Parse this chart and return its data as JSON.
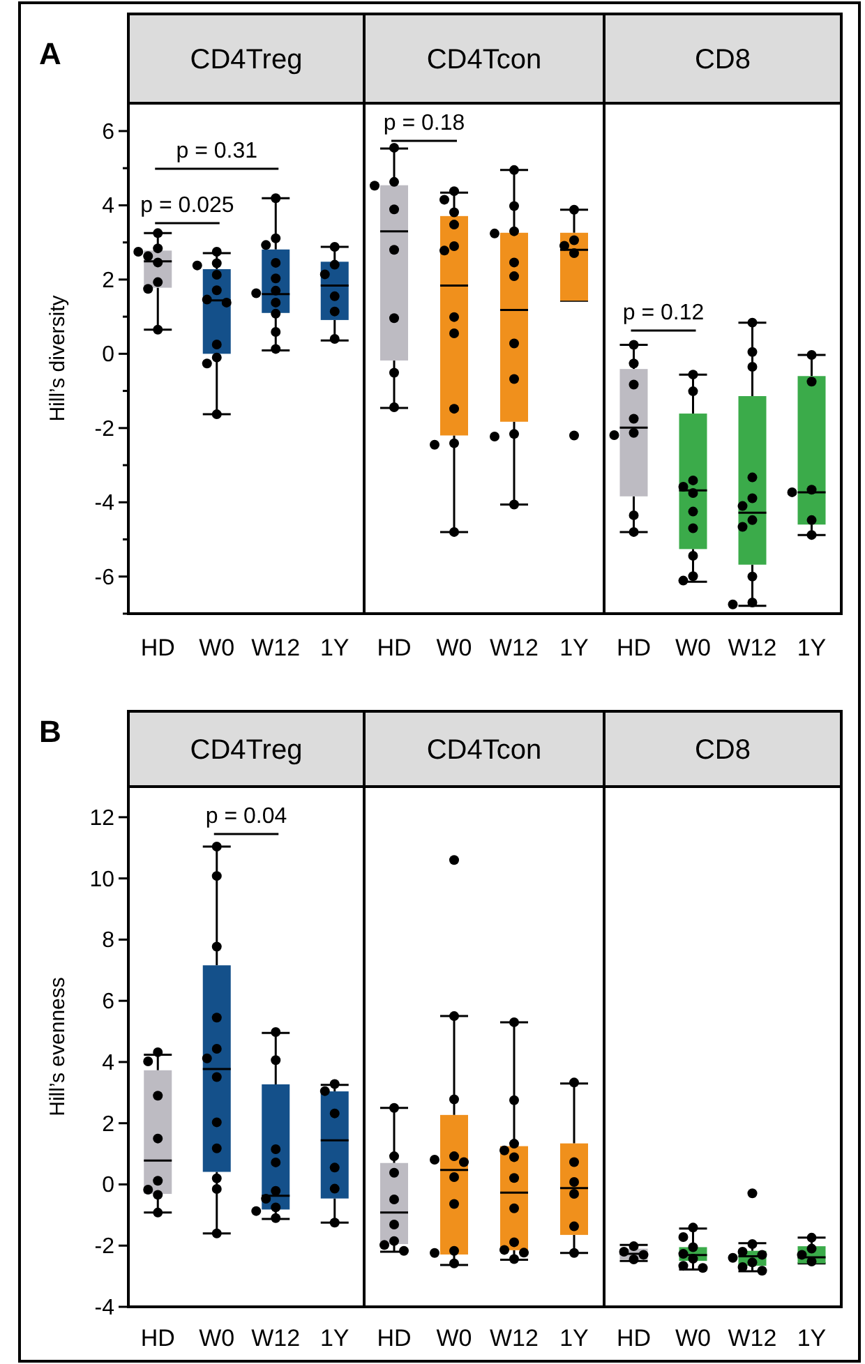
{
  "chart_data": [
    {
      "type": "box",
      "title": "CD4Treg",
      "ylabel": "Hill’s diversity",
      "categories": [
        "HD",
        "W0",
        "W12",
        "1Y"
      ],
      "colors": [
        "#bdbbc2",
        "#14508a",
        "#14508a",
        "#14508a"
      ],
      "boxes": [
        {
          "low": 0.65,
          "q1": 1.78,
          "median": 2.49,
          "q3": 2.78,
          "high": 3.25
        },
        {
          "low": -1.63,
          "q1": 0,
          "median": 1.44,
          "q3": 2.28,
          "high": 2.71
        },
        {
          "low": 0.09,
          "q1": 1.1,
          "median": 1.61,
          "q3": 2.81,
          "high": 4.19
        },
        {
          "low": 0.36,
          "q1": 0.91,
          "median": 1.84,
          "q3": 2.48,
          "high": 2.88
        }
      ],
      "series": [
        {
          "type": "scatter",
          "color": "#000000",
          "x": [
            "HD",
            "HD",
            "HD",
            "HD",
            "HD",
            "HD",
            "HD",
            "HD",
            "W0",
            "W0",
            "W0",
            "W0",
            "W0",
            "W0",
            "W0",
            "W0",
            "W0",
            "W0",
            "W0",
            "W12",
            "W12",
            "W12",
            "W12",
            "W12",
            "W12",
            "W12",
            "W12",
            "W12",
            "W12",
            "W12",
            "1Y",
            "1Y",
            "1Y",
            "1Y",
            "1Y",
            "1Y"
          ],
          "values": [
            3.25,
            2.84,
            2.75,
            2.63,
            2.46,
            1.93,
            1.75,
            0.65,
            2.75,
            2.44,
            2.38,
            2.13,
            1.71,
            1.46,
            1.38,
            0.25,
            -0.1,
            -0.26,
            -1.63,
            4.19,
            3.11,
            2.93,
            2.45,
            2.03,
            1.7,
            1.63,
            1.38,
            1.08,
            0.59,
            0.13,
            2.88,
            2.4,
            2.14,
            1.55,
            1.14,
            0.4
          ]
        }
      ],
      "marker": "circle",
      "ylim": [
        -7,
        6.75
      ],
      "yticks": [
        {
          "value": -7,
          "label": null
        },
        -6,
        {
          "value": -5,
          "label": null
        },
        -4,
        {
          "value": -3,
          "label": null
        },
        -2,
        {
          "value": -1,
          "label": null
        },
        0,
        {
          "value": 1,
          "label": null
        },
        2,
        {
          "value": 3,
          "label": null
        },
        4,
        {
          "value": 5,
          "label": null
        },
        6
      ],
      "annotations": [
        "A",
        "p = 0.31",
        "p = 0.025"
      ]
    },
    {
      "type": "box",
      "title": "CD4Tcon",
      "categories": [
        "HD",
        "W0",
        "W12",
        "1Y"
      ],
      "colors": [
        "#bdbbc2",
        "#f0901c",
        "#f0901c",
        "#f0901c"
      ],
      "boxes": [
        {
          "low": -1.46,
          "q1": -0.18,
          "median": 3.3,
          "q3": 4.54,
          "high": 5.53
        },
        {
          "low": -4.8,
          "q1": -2.2,
          "median": 1.84,
          "q3": 3.71,
          "high": 4.34
        },
        {
          "low": -4.06,
          "q1": -1.83,
          "median": 1.18,
          "q3": 3.26,
          "high": 4.95
        },
        {
          "low": 1.43,
          "q1": 1.43,
          "median": 2.8,
          "q3": 3.26,
          "high": 3.88
        }
      ],
      "series": [
        {
          "type": "scatter",
          "color": "#000000",
          "x": [
            "HD",
            "HD",
            "HD",
            "HD",
            "HD",
            "HD",
            "HD",
            "HD",
            "W0",
            "W0",
            "W0",
            "W0",
            "W0",
            "W0",
            "W0",
            "W0",
            "W0",
            "W0",
            "W0",
            "W0",
            "W12",
            "W12",
            "W12",
            "W12",
            "W12",
            "W12",
            "W12",
            "W12",
            "W12",
            "W12",
            "W12",
            "1Y",
            "1Y",
            "1Y",
            "1Y",
            "1Y"
          ],
          "values": [
            5.55,
            4.63,
            4.53,
            3.89,
            2.8,
            0.96,
            -0.51,
            -1.44,
            4.38,
            4.15,
            3.81,
            3.48,
            2.9,
            2.78,
            0.99,
            0.55,
            -1.48,
            -2.41,
            -2.45,
            -4.8,
            4.95,
            3.98,
            3.3,
            3.24,
            2.46,
            2.09,
            0.28,
            -0.68,
            -2.16,
            -2.23,
            -4.06,
            3.88,
            3.06,
            2.91,
            2.71,
            -2.2
          ]
        }
      ],
      "marker": "circle",
      "ylim": [
        -7,
        6.75
      ],
      "tick_labels": "x",
      "annotations": [
        "p = 0.18"
      ]
    },
    {
      "type": "box",
      "title": "CD8",
      "categories": [
        "HD",
        "W0",
        "W12",
        "1Y"
      ],
      "colors": [
        "#bdbbc2",
        "#3bab4a",
        "#3bab4a",
        "#3bab4a"
      ],
      "boxes": [
        {
          "low": -4.8,
          "q1": -3.84,
          "median": -1.99,
          "q3": -0.41,
          "high": 0.24
        },
        {
          "low": -6.14,
          "q1": -5.26,
          "median": -3.68,
          "q3": -1.61,
          "high": -0.56
        },
        {
          "low": -6.79,
          "q1": -5.68,
          "median": -4.28,
          "q3": -1.14,
          "high": 0.84
        },
        {
          "low": -4.88,
          "q1": -4.6,
          "median": -3.73,
          "q3": -0.6,
          "high": -0.03
        }
      ],
      "series": [
        {
          "type": "scatter",
          "color": "#000000",
          "x": [
            "HD",
            "HD",
            "HD",
            "HD",
            "HD",
            "HD",
            "HD",
            "HD",
            "W0",
            "W0",
            "W0",
            "W0",
            "W0",
            "W0",
            "W0",
            "W0",
            "W0",
            "W0",
            "W12",
            "W12",
            "W12",
            "W12",
            "W12",
            "W12",
            "W12",
            "W12",
            "W12",
            "W12",
            "W12",
            "1Y",
            "1Y",
            "1Y",
            "1Y",
            "1Y",
            "1Y"
          ],
          "values": [
            0.24,
            -0.26,
            -0.83,
            -1.75,
            -2.13,
            -2.19,
            -4.35,
            -4.8,
            -0.56,
            -1.01,
            -3.41,
            -3.58,
            -3.75,
            -4.25,
            -4.7,
            -5.44,
            -5.99,
            -6.11,
            0.84,
            0.05,
            -0.35,
            -3.33,
            -3.89,
            -4.1,
            -4.48,
            -4.66,
            -6.0,
            -6.7,
            -6.75,
            -0.03,
            -0.75,
            -3.66,
            -3.73,
            -4.48,
            -4.88
          ]
        }
      ],
      "marker": "circle",
      "ylim": [
        -7,
        6.75
      ],
      "tick_labels": "x",
      "annotations": [
        "p = 0.12"
      ]
    },
    {
      "type": "box",
      "title": "CD4Treg",
      "ylabel": "Hill’s evenness",
      "categories": [
        "HD",
        "W0",
        "W12",
        "1Y"
      ],
      "colors": [
        "#bdbbc2",
        "#14508a",
        "#14508a",
        "#14508a"
      ],
      "boxes": [
        {
          "low": -0.92,
          "q1": -0.31,
          "median": 0.78,
          "q3": 3.73,
          "high": 4.24
        },
        {
          "low": -1.6,
          "q1": 0.41,
          "median": 3.77,
          "q3": 7.16,
          "high": 11.04
        },
        {
          "low": -1.13,
          "q1": -0.82,
          "median": -0.37,
          "q3": 3.27,
          "high": 4.95
        },
        {
          "low": -1.25,
          "q1": -0.46,
          "median": 1.44,
          "q3": 3.04,
          "high": 3.25
        }
      ],
      "series": [
        {
          "type": "scatter",
          "color": "#000000",
          "x": [
            "HD",
            "HD",
            "HD",
            "HD",
            "HD",
            "HD",
            "HD",
            "HD",
            "W0",
            "W0",
            "W0",
            "W0",
            "W0",
            "W0",
            "W0",
            "W0",
            "W0",
            "W0",
            "W0",
            "W0",
            "W12",
            "W12",
            "W12",
            "W12",
            "W12",
            "W12",
            "W12",
            "W12",
            "W12",
            "1Y",
            "1Y",
            "1Y",
            "1Y",
            "1Y",
            "1Y"
          ],
          "values": [
            4.32,
            4.02,
            2.9,
            1.5,
            0.12,
            -0.17,
            -0.34,
            -0.92,
            11.04,
            10.08,
            7.77,
            5.45,
            4.43,
            4.12,
            3.51,
            2.03,
            1.18,
            0.2,
            -0.15,
            -1.6,
            4.98,
            4.06,
            1.15,
            0.72,
            -0.21,
            -0.47,
            -0.75,
            -0.87,
            -1.1,
            3.28,
            3.05,
            2.32,
            0.55,
            -0.14,
            -1.25
          ]
        }
      ],
      "marker": "circle",
      "ylim": [
        -4,
        13
      ],
      "yticks": [
        -4,
        -2,
        0,
        2,
        4,
        6,
        8,
        10,
        12
      ],
      "annotations": [
        "B",
        "p = 0.04"
      ]
    },
    {
      "type": "box",
      "title": "CD4Tcon",
      "categories": [
        "HD",
        "W0",
        "W12",
        "1Y"
      ],
      "colors": [
        "#bdbbc2",
        "#f0901c",
        "#f0901c",
        "#f0901c"
      ],
      "boxes": [
        {
          "low": -2.2,
          "q1": -1.95,
          "median": -0.92,
          "q3": 0.7,
          "high": 2.5
        },
        {
          "low": -2.63,
          "q1": -2.29,
          "median": 0.47,
          "q3": 2.27,
          "high": 5.5
        },
        {
          "low": -2.46,
          "q1": -2.15,
          "median": -0.27,
          "q3": 1.25,
          "high": 5.3
        },
        {
          "low": -2.24,
          "q1": -1.65,
          "median": -0.12,
          "q3": 1.34,
          "high": 3.3
        }
      ],
      "series": [
        {
          "type": "scatter",
          "color": "#000000",
          "x": [
            "HD",
            "HD",
            "HD",
            "HD",
            "HD",
            "HD",
            "HD",
            "HD",
            "W0",
            "W0",
            "W0",
            "W0",
            "W0",
            "W0",
            "W0",
            "W0",
            "W0",
            "W0",
            "W0",
            "W12",
            "W12",
            "W12",
            "W12",
            "W12",
            "W12",
            "W12",
            "W12",
            "W12",
            "W12",
            "W12",
            "1Y",
            "1Y",
            "1Y",
            "1Y",
            "1Y",
            "1Y"
          ],
          "values": [
            2.5,
            0.92,
            0.38,
            -0.49,
            -1.31,
            -1.85,
            -1.98,
            -2.17,
            10.6,
            5.5,
            2.78,
            0.92,
            0.81,
            0.73,
            0.24,
            -0.64,
            -2.17,
            -2.24,
            -2.58,
            5.3,
            2.75,
            1.33,
            1.11,
            0.89,
            0.21,
            -0.78,
            -1.89,
            -2.14,
            -2.23,
            -2.44,
            3.33,
            0.73,
            0.08,
            -0.31,
            -1.37,
            -2.24
          ]
        }
      ],
      "marker": "circle",
      "ylim": [
        -4,
        13
      ],
      "tick_labels": "x"
    },
    {
      "type": "box",
      "title": "CD8",
      "categories": [
        "HD",
        "W0",
        "W12",
        "1Y"
      ],
      "colors": [
        "#bdbbc2",
        "#3bab4a",
        "#3bab4a",
        "#3bab4a"
      ],
      "boxes": [
        {
          "low": -2.5,
          "q1": -2.45,
          "median": -2.27,
          "q3": -2.1,
          "high": -1.98
        },
        {
          "low": -2.78,
          "q1": -2.5,
          "median": -2.31,
          "q3": -2.05,
          "high": -1.44
        },
        {
          "low": -2.84,
          "q1": -2.66,
          "median": -2.35,
          "q3": -2.17,
          "high": -1.92
        },
        {
          "low": -2.58,
          "q1": -2.58,
          "median": -2.38,
          "q3": -2.02,
          "high": -1.74
        }
      ],
      "series": [
        {
          "type": "scatter",
          "color": "#000000",
          "x": [
            "HD",
            "HD",
            "HD",
            "HD",
            "W0",
            "W0",
            "W0",
            "W0",
            "W0",
            "W0",
            "W0",
            "W12",
            "W12",
            "W12",
            "W12",
            "W12",
            "W12",
            "W12",
            "W12",
            "1Y",
            "1Y",
            "1Y",
            "1Y"
          ],
          "values": [
            -2.02,
            -2.2,
            -2.3,
            -2.45,
            -1.41,
            -1.72,
            -2.05,
            -2.27,
            -2.43,
            -2.66,
            -2.73,
            -0.29,
            -1.95,
            -2.2,
            -2.3,
            -2.4,
            -2.55,
            -2.7,
            -2.82,
            -1.74,
            -2.1,
            -2.3,
            -2.52
          ]
        }
      ],
      "marker": "circle",
      "ylim": [
        -4,
        13
      ],
      "tick_labels": "x"
    }
  ]
}
